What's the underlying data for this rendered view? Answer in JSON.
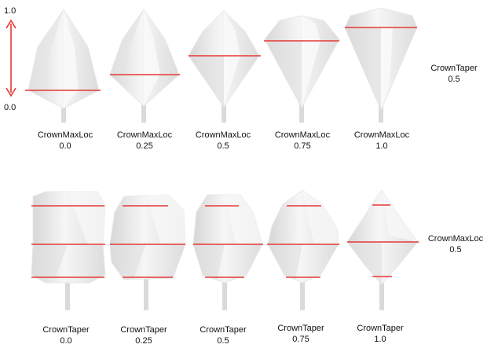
{
  "axis": {
    "top": "1.0",
    "bottom": "0.0",
    "arrow_color": "#e53935"
  },
  "top_row": {
    "param": "CrownMaxLoc",
    "side_label": {
      "param": "CrownTaper",
      "value": "0.5"
    },
    "items": [
      {
        "value": "0.0"
      },
      {
        "value": "0.25"
      },
      {
        "value": "0.5"
      },
      {
        "value": "0.75"
      },
      {
        "value": "1.0"
      }
    ]
  },
  "bottom_row": {
    "param": "CrownTaper",
    "side_label": {
      "param": "CrownMaxLoc",
      "value": "0.5"
    },
    "items": [
      {
        "value": "0.0"
      },
      {
        "value": "0.25"
      },
      {
        "value": "0.5"
      },
      {
        "value": "0.75"
      },
      {
        "value": "1.0"
      }
    ]
  },
  "colors": {
    "line": "#e53935",
    "crown_light": "#f4f4f4",
    "crown_mid": "#e2e2e2",
    "crown_dark": "#cfcfcf",
    "trunk": "#d9d9d9"
  }
}
